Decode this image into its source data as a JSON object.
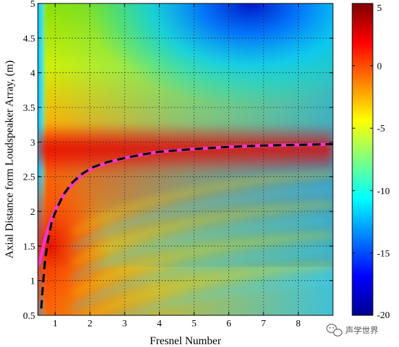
{
  "chart_data": {
    "type": "heatmap",
    "title": "",
    "xlabel": "Fresnel Number",
    "ylabel": "Axial Distance form Loudspeaker Array, (m)",
    "xlim": [
      0.5,
      9.0
    ],
    "ylim": [
      0.5,
      5.0
    ],
    "x_ticks": [
      1,
      2,
      3,
      4,
      5,
      6,
      7,
      8
    ],
    "x_tick_labels": [
      "1",
      "2",
      "3",
      "4",
      "5",
      "6",
      "7",
      "8"
    ],
    "y_ticks": [
      0.5,
      1,
      1.5,
      2,
      2.5,
      3,
      3.5,
      4,
      4.5,
      5
    ],
    "y_tick_labels": [
      "0.5",
      "1",
      "1.5",
      "2",
      "2.5",
      "3",
      "3.5",
      "4",
      "4.5",
      "5"
    ],
    "grid": true,
    "colormap": "jet",
    "colorbar": {
      "range": [
        -20,
        5
      ],
      "ticks": [
        5,
        0,
        -5,
        -10,
        -15,
        -20
      ],
      "tick_labels": [
        "5",
        "0",
        "-5",
        "-10",
        "-15",
        "-20"
      ]
    },
    "series": [
      {
        "style": "solid",
        "color": "#ff33cc",
        "x": [
          0.55,
          0.62,
          0.7,
          0.8,
          0.95,
          1.1,
          1.3,
          1.55,
          1.8,
          2.1,
          2.5,
          3.0,
          3.5,
          4.0,
          5.0,
          6.0,
          7.0,
          8.0,
          9.0
        ],
        "y": [
          1.25,
          1.42,
          1.58,
          1.76,
          1.96,
          2.12,
          2.28,
          2.42,
          2.54,
          2.63,
          2.7,
          2.77,
          2.82,
          2.86,
          2.9,
          2.93,
          2.95,
          2.96,
          2.97
        ]
      },
      {
        "style": "dashed",
        "color": "#000000",
        "x": [
          0.6,
          0.64,
          0.7,
          0.78,
          0.9,
          1.05,
          1.25,
          1.5,
          1.8,
          2.1,
          2.5,
          3.0,
          3.5,
          4.0,
          5.0,
          6.0,
          7.0,
          8.0,
          9.0
        ],
        "y": [
          0.6,
          0.9,
          1.25,
          1.55,
          1.85,
          2.05,
          2.25,
          2.42,
          2.55,
          2.64,
          2.71,
          2.77,
          2.82,
          2.86,
          2.9,
          2.93,
          2.95,
          2.96,
          2.97
        ]
      }
    ]
  },
  "watermark": {
    "icon": "wechat-icon",
    "text": "声学世界"
  }
}
